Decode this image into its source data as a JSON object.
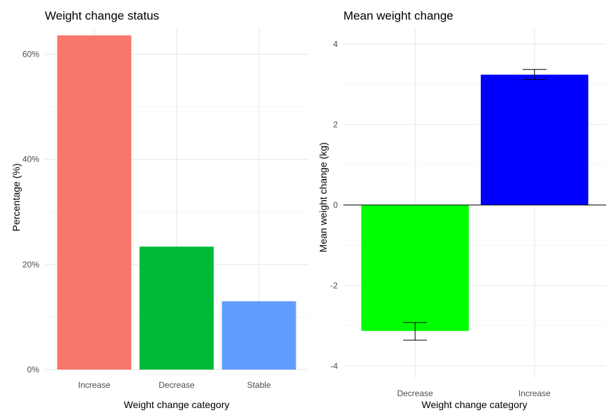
{
  "chart_data": [
    {
      "type": "bar",
      "title": "Weight change status",
      "xlabel": "Weight change category",
      "ylabel": "Percentage (%)",
      "categories": [
        "Increase",
        "Decrease",
        "Stable"
      ],
      "values": [
        63.6,
        23.4,
        13.0
      ],
      "value_unit": "%",
      "colors": [
        "#F8766D",
        "#00BA38",
        "#619CFF"
      ],
      "ylim": [
        0,
        65
      ],
      "yticks": [
        0,
        20,
        40,
        60
      ],
      "ytick_labels": [
        "0%",
        "20%",
        "40%",
        "60%"
      ],
      "grid": true,
      "legend": "none"
    },
    {
      "type": "bar",
      "title": "Mean weight change",
      "xlabel": "Weight change category",
      "ylabel": "Mean weight change (kg)",
      "categories": [
        "Decrease",
        "Increase"
      ],
      "values": [
        -3.13,
        3.24
      ],
      "error_low": [
        -3.36,
        3.12
      ],
      "error_high": [
        -2.92,
        3.37
      ],
      "colors": [
        "#00FF00",
        "#0000FF"
      ],
      "ylim": [
        -4.3,
        4.4
      ],
      "yticks": [
        -4,
        -2,
        0,
        2,
        4
      ],
      "ytick_labels": [
        "-4",
        "-2",
        "0",
        "2",
        "4"
      ],
      "zero_line": true,
      "grid": true,
      "legend": "none"
    }
  ]
}
